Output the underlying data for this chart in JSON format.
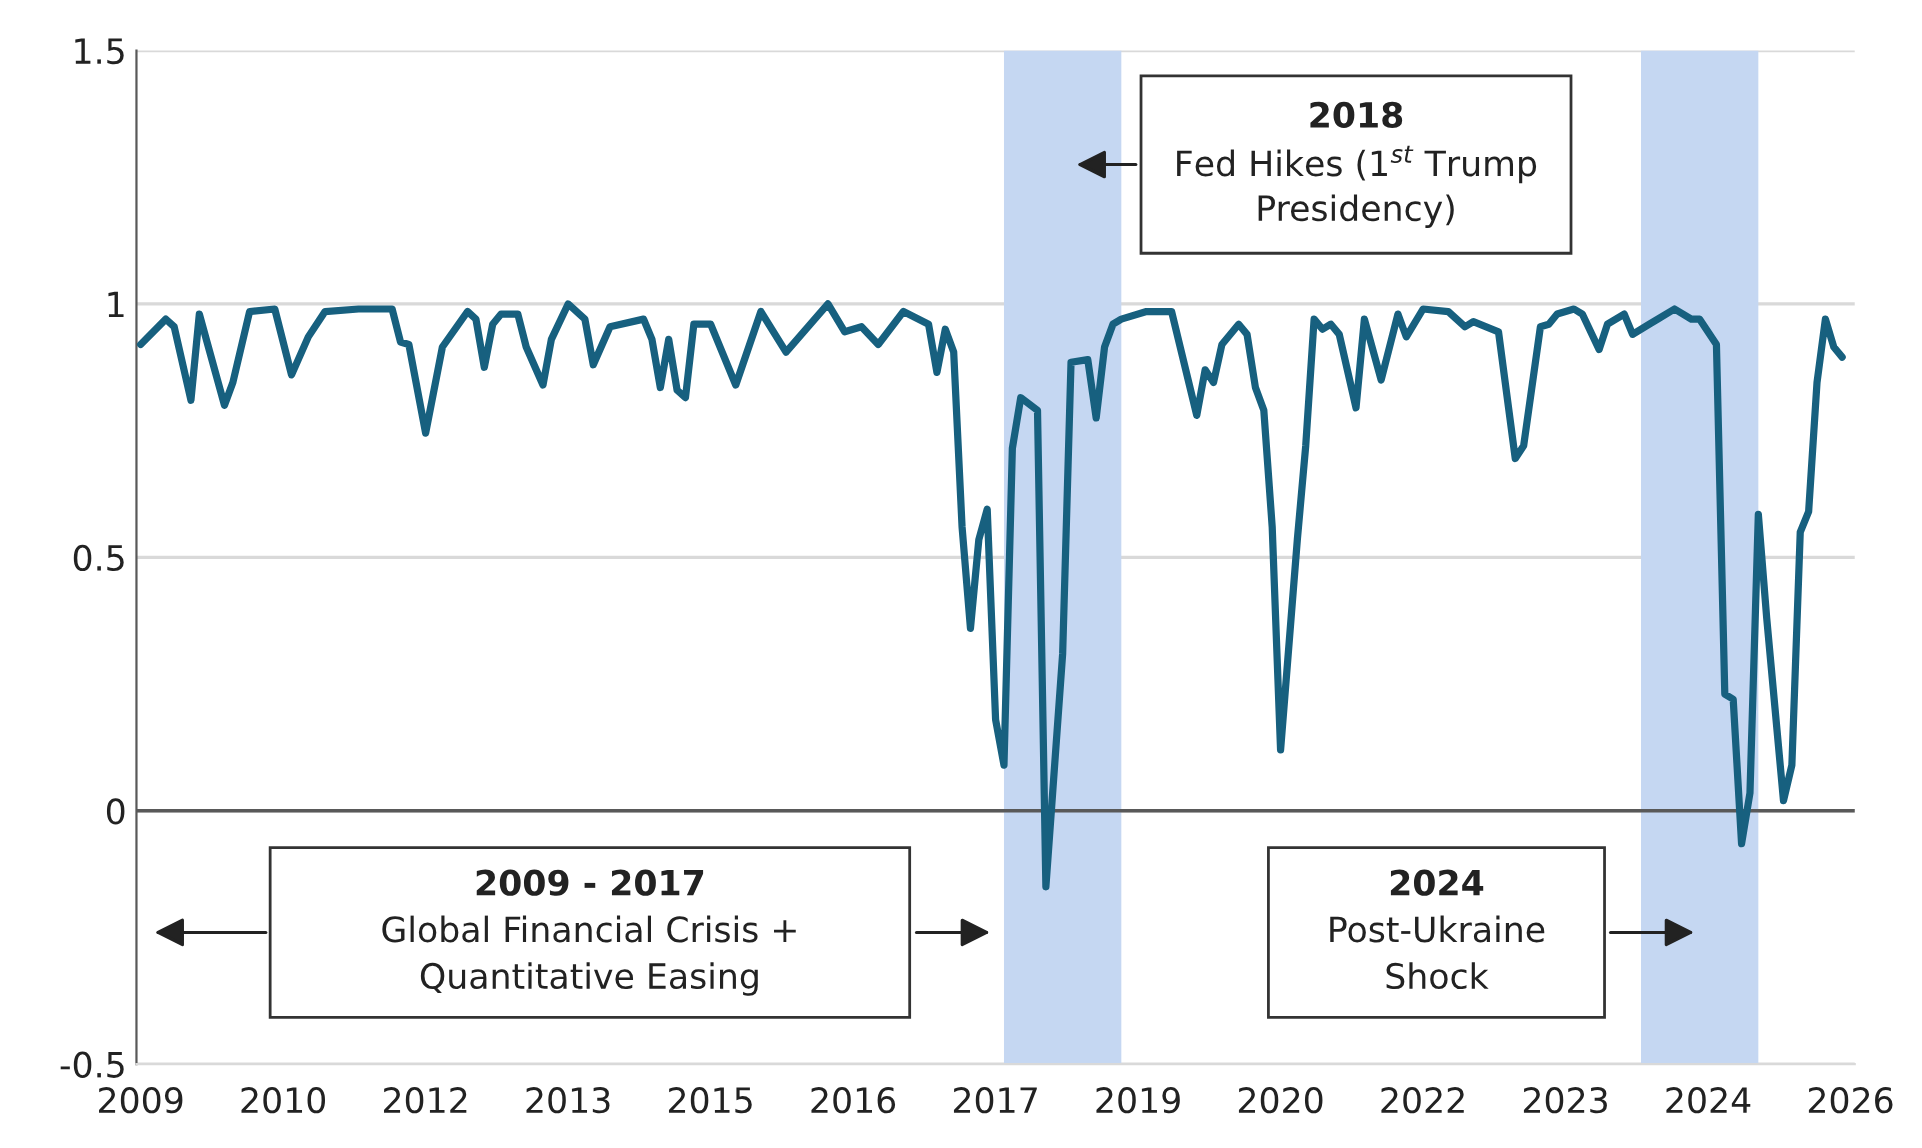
{
  "chart_data": {
    "type": "line",
    "categories": [
      "2009",
      null,
      null,
      null,
      null,
      null,
      null,
      null,
      null,
      null,
      null,
      null,
      null,
      null,
      null,
      null,
      null,
      "2010",
      null,
      null,
      null,
      null,
      null,
      null,
      null,
      null,
      null,
      null,
      null,
      null,
      null,
      null,
      null,
      null,
      "2012",
      null,
      null,
      null,
      null,
      null,
      null,
      null,
      null,
      null,
      null,
      null,
      null,
      null,
      null,
      null,
      null,
      "2013",
      null,
      null,
      null,
      null,
      null,
      null,
      null,
      null,
      null,
      null,
      null,
      null,
      null,
      null,
      null,
      null,
      "2015",
      null,
      null,
      null,
      null,
      null,
      null,
      null,
      null,
      null,
      null,
      null,
      null,
      null,
      null,
      null,
      null,
      "2016",
      null,
      null,
      null,
      null,
      null,
      null,
      null,
      null,
      null,
      null,
      null,
      null,
      null,
      null,
      null,
      null,
      "2017",
      null,
      null,
      null,
      null,
      null,
      null,
      null,
      null,
      null,
      null,
      null,
      null,
      null,
      null,
      null,
      null,
      "2019",
      null,
      null,
      null,
      null,
      null,
      null,
      null,
      null,
      null,
      null,
      null,
      null,
      null,
      null,
      null,
      null,
      "2020",
      null,
      null,
      null,
      null,
      null,
      null,
      null,
      null,
      null,
      null,
      null,
      null,
      null,
      null,
      null,
      null,
      "2022",
      null,
      null,
      null,
      null,
      null,
      null,
      null,
      null,
      null,
      null,
      null,
      null,
      null,
      null,
      null,
      null,
      "2023",
      null,
      null,
      null,
      null,
      null,
      null,
      null,
      null,
      null,
      null,
      null,
      null,
      null,
      null,
      null,
      null,
      "2024",
      null,
      null,
      null,
      null,
      null,
      null,
      null,
      null,
      null,
      null,
      null,
      null,
      null,
      null,
      null,
      null,
      "2026"
    ],
    "series": [
      {
        "color": "#17607f",
        "values": [
          0.92,
          null,
          null,
          0.97,
          0.955,
          null,
          0.81,
          0.98,
          0.92,
          null,
          0.8,
          0.845,
          null,
          0.985,
          null,
          null,
          0.99,
          null,
          0.86,
          null,
          0.935,
          null,
          0.985,
          null,
          null,
          null,
          0.99,
          null,
          null,
          null,
          0.99,
          0.925,
          0.92,
          null,
          0.745,
          null,
          0.915,
          null,
          null,
          0.985,
          0.97,
          0.875,
          0.96,
          0.98,
          null,
          0.98,
          0.915,
          null,
          0.84,
          0.93,
          null,
          1.0,
          null,
          0.97,
          0.88,
          null,
          0.955,
          null,
          null,
          null,
          0.97,
          0.93,
          0.835,
          0.93,
          0.83,
          0.815,
          0.96,
          null,
          0.96,
          null,
          null,
          0.84,
          null,
          null,
          0.985,
          null,
          null,
          0.905,
          null,
          null,
          null,
          null,
          1.0,
          null,
          0.945,
          null,
          0.955,
          null,
          0.92,
          null,
          null,
          0.985,
          null,
          null,
          0.96,
          0.865,
          0.95,
          0.905,
          0.56,
          0.36,
          0.535,
          0.595,
          0.18,
          0.09,
          0.715,
          0.815,
          null,
          0.79,
          -0.15,
          null,
          0.31,
          0.885,
          null,
          0.89,
          0.775,
          0.915,
          0.96,
          0.97,
          null,
          null,
          0.985,
          null,
          null,
          0.985,
          null,
          null,
          0.78,
          0.87,
          0.845,
          0.92,
          null,
          0.96,
          0.94,
          0.835,
          0.79,
          0.56,
          0.12,
          null,
          0.535,
          0.72,
          0.97,
          0.95,
          0.96,
          0.94,
          null,
          0.795,
          0.97,
          null,
          0.85,
          null,
          0.98,
          0.935,
          null,
          0.99,
          null,
          null,
          0.985,
          null,
          0.955,
          0.965,
          null,
          null,
          0.945,
          null,
          0.695,
          0.72,
          null,
          0.955,
          0.96,
          0.98,
          null,
          0.99,
          0.98,
          null,
          0.91,
          0.96,
          null,
          0.98,
          0.94,
          null,
          0.96,
          0.97,
          null,
          0.99,
          null,
          0.97,
          0.97,
          null,
          0.92,
          0.23,
          0.22,
          -0.065,
          0.035,
          0.585,
          0.38,
          0.2,
          0.02,
          0.09,
          0.55,
          0.59,
          0.845,
          0.97,
          0.915,
          0.895,
          null
        ]
      }
    ],
    "ylim": [
      -0.5,
      1.5
    ],
    "yticks": [
      {
        "value": -0.5,
        "label": "-0.5"
      },
      0,
      0.5,
      1,
      1.5
    ],
    "grid": "y",
    "ref_lines": [
      {
        "axis": "y",
        "value": 0,
        "color": "#595959"
      }
    ],
    "annotations": [
      "2009 - 2017\nGlobal Financial Crisis +\nQuantitative Easing",
      "2018\nFed Hikes (1$^{st}$ Trump\nPresidency)",
      "2024\nPost-Ukraine\nShock"
    ]
  }
}
